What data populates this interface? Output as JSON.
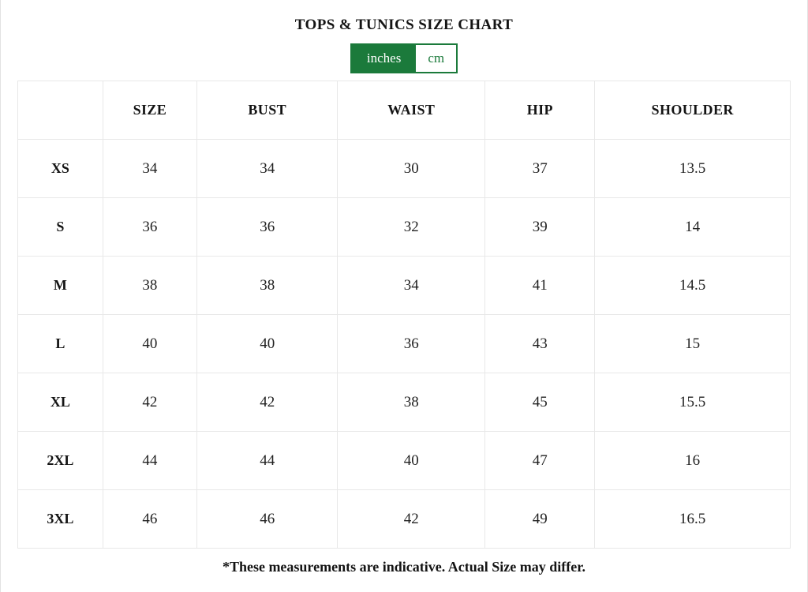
{
  "page": {
    "title": "TOPS & TUNICS SIZE CHART",
    "footnote": "*These measurements are indicative. Actual Size may differ."
  },
  "unit_toggle": {
    "selected": "inches",
    "active_color": "#1b7a3b",
    "options": [
      {
        "label": "inches",
        "selected": true
      },
      {
        "label": "cm",
        "selected": false
      }
    ]
  },
  "chart_data": {
    "type": "table",
    "title": "TOPS & TUNICS SIZE CHART",
    "unit": "inches",
    "columns": [
      "",
      "SIZE",
      "BUST",
      "WAIST",
      "HIP",
      "SHOULDER"
    ],
    "rows": [
      {
        "label": "XS",
        "values": [
          "34",
          "34",
          "30",
          "37",
          "13.5"
        ]
      },
      {
        "label": "S",
        "values": [
          "36",
          "36",
          "32",
          "39",
          "14"
        ]
      },
      {
        "label": "M",
        "values": [
          "38",
          "38",
          "34",
          "41",
          "14.5"
        ]
      },
      {
        "label": "L",
        "values": [
          "40",
          "40",
          "36",
          "43",
          "15"
        ]
      },
      {
        "label": "XL",
        "values": [
          "42",
          "42",
          "38",
          "45",
          "15.5"
        ]
      },
      {
        "label": "2XL",
        "values": [
          "44",
          "44",
          "40",
          "47",
          "16"
        ]
      },
      {
        "label": "3XL",
        "values": [
          "46",
          "46",
          "42",
          "49",
          "16.5"
        ]
      }
    ]
  }
}
